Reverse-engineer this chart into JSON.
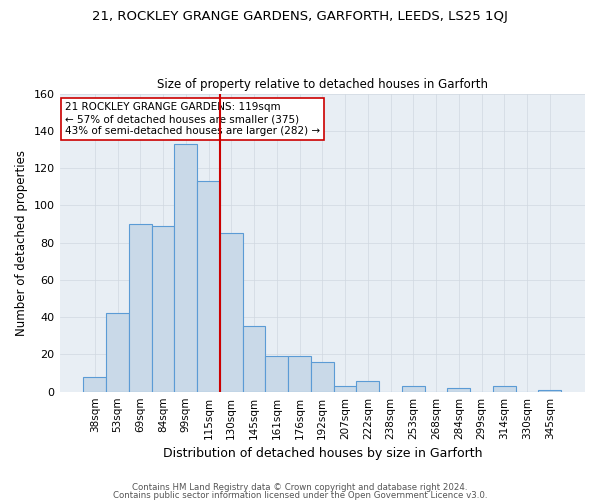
{
  "title": "21, ROCKLEY GRANGE GARDENS, GARFORTH, LEEDS, LS25 1QJ",
  "subtitle": "Size of property relative to detached houses in Garforth",
  "xlabel": "Distribution of detached houses by size in Garforth",
  "ylabel": "Number of detached properties",
  "bar_labels": [
    "38sqm",
    "53sqm",
    "69sqm",
    "84sqm",
    "99sqm",
    "115sqm",
    "130sqm",
    "145sqm",
    "161sqm",
    "176sqm",
    "192sqm",
    "207sqm",
    "222sqm",
    "238sqm",
    "253sqm",
    "268sqm",
    "284sqm",
    "299sqm",
    "314sqm",
    "330sqm",
    "345sqm"
  ],
  "bar_values": [
    8,
    42,
    90,
    89,
    133,
    113,
    85,
    35,
    19,
    19,
    16,
    3,
    6,
    0,
    3,
    0,
    2,
    0,
    3,
    0,
    1
  ],
  "bar_color": "#c9d9e8",
  "bar_edge_color": "#5b9bd5",
  "grid_color": "#d0d8e0",
  "background_color": "#e8eef4",
  "vline_x": 5.5,
  "vline_color": "#cc0000",
  "annotation_text": "21 ROCKLEY GRANGE GARDENS: 119sqm\n← 57% of detached houses are smaller (375)\n43% of semi-detached houses are larger (282) →",
  "annotation_box_edge": "#cc0000",
  "footer_line1": "Contains HM Land Registry data © Crown copyright and database right 2024.",
  "footer_line2": "Contains public sector information licensed under the Open Government Licence v3.0.",
  "ylim": [
    0,
    160
  ],
  "yticks": [
    0,
    20,
    40,
    60,
    80,
    100,
    120,
    140,
    160
  ]
}
